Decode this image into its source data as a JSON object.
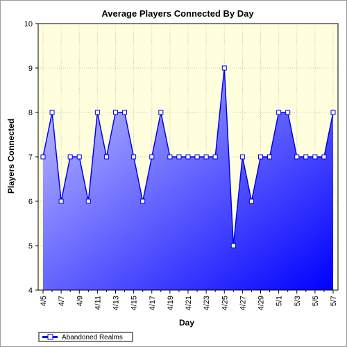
{
  "chart_data": {
    "type": "area",
    "title": "Average Players Connected By Day",
    "xlabel": "Day",
    "ylabel": "Players Connected",
    "ylim": [
      4,
      10
    ],
    "yticks": [
      4,
      5,
      6,
      7,
      8,
      9,
      10
    ],
    "grid": true,
    "legend_position": "bottom-left",
    "x": [
      "4/5",
      "4/6",
      "4/7",
      "4/8",
      "4/9",
      "4/10",
      "4/11",
      "4/12",
      "4/13",
      "4/14",
      "4/15",
      "4/16",
      "4/17",
      "4/18",
      "4/19",
      "4/20",
      "4/21",
      "4/22",
      "4/23",
      "4/24",
      "4/25",
      "4/26",
      "4/27",
      "4/28",
      "4/29",
      "4/30",
      "5/1",
      "5/2",
      "5/3",
      "5/4",
      "5/5",
      "5/6",
      "5/7"
    ],
    "x_tick_labels": [
      "4/5",
      "4/7",
      "4/9",
      "4/11",
      "4/13",
      "4/15",
      "4/17",
      "4/19",
      "4/21",
      "4/23",
      "4/25",
      "4/27",
      "4/29",
      "5/1",
      "5/3",
      "5/5",
      "5/7"
    ],
    "series": [
      {
        "name": "Abandoned Realms",
        "values": [
          7,
          8,
          6,
          7,
          7,
          6,
          8,
          7,
          8,
          8,
          7,
          6,
          7,
          8,
          7,
          7,
          7,
          7,
          7,
          7,
          9,
          5,
          7,
          6,
          7,
          7,
          8,
          8,
          7,
          7,
          7,
          7,
          8
        ]
      }
    ],
    "colors": {
      "line": "#0000ee",
      "area_light": "#c4c4ff",
      "area_dark": "#0000ff",
      "plot_bg": "#ffffdd",
      "grid": "#c8c8b4"
    }
  }
}
